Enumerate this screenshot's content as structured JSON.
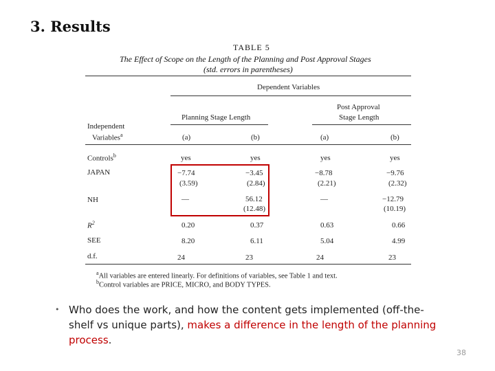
{
  "slide": {
    "title": "3. Results",
    "page_number": "38"
  },
  "table": {
    "label": "TABLE 5",
    "caption_line1": "The Effect of Scope on the Length of the Planning and Post Approval Stages",
    "caption_line2": "(std. errors in parentheses)",
    "dependent_header": "Dependent Variables",
    "planning_header": "Planning Stage Length",
    "post_header_line1": "Post Approval",
    "post_header_line2": "Stage Length",
    "indep_line1": "Independent",
    "indep_line2": "Variables",
    "indep_sup": "a",
    "col_a1": "(a)",
    "col_b1": "(b)",
    "col_a2": "(a)",
    "col_b2": "(b)",
    "rows": [
      {
        "label": "Controls",
        "sup": "b",
        "v": [
          "yes",
          "yes",
          "yes",
          "yes"
        ],
        "se": [
          "",
          "",
          "",
          ""
        ]
      },
      {
        "label": "JAPAN",
        "sup": "",
        "v": [
          "−7.74",
          "−3.45",
          "−8.78",
          "−9.76"
        ],
        "se": [
          "(3.59)",
          "(2.84)",
          "(2.21)",
          "(2.32)"
        ]
      },
      {
        "label": "NH",
        "sup": "",
        "v": [
          "—",
          "56.12",
          "—",
          "−12.79"
        ],
        "se": [
          "",
          "(12.48)",
          "",
          "(10.19)"
        ]
      },
      {
        "label": "R",
        "sup": "2",
        "v": [
          "0.20",
          "0.37",
          "0.63",
          "0.66"
        ],
        "se": [
          "",
          "",
          "",
          ""
        ]
      },
      {
        "label": "SEE",
        "sup": "",
        "v": [
          "8.20",
          "6.11",
          "5.04",
          "4.99"
        ],
        "se": [
          "",
          "",
          "",
          ""
        ]
      },
      {
        "label": "d.f.",
        "sup": "",
        "v": [
          "24",
          "23",
          "24",
          "23"
        ],
        "se": [
          "",
          "",
          "",
          ""
        ]
      }
    ],
    "footnote_a_mark": "a",
    "footnote_a": "All variables are entered linearly. For definitions of variables, see Table 1 and text.",
    "footnote_b_mark": "b",
    "footnote_b": "Control variables are PRICE, MICRO, and BODY TYPES."
  },
  "bullet": {
    "text_plain": "Who does the work, and how the content gets implemented (off-the-shelf vs unique parts), ",
    "text_emph": "makes a difference in the length of the planning process",
    "text_end": "."
  },
  "colors": {
    "emphasis": "#c00000",
    "highlight_box": "#c00000"
  }
}
